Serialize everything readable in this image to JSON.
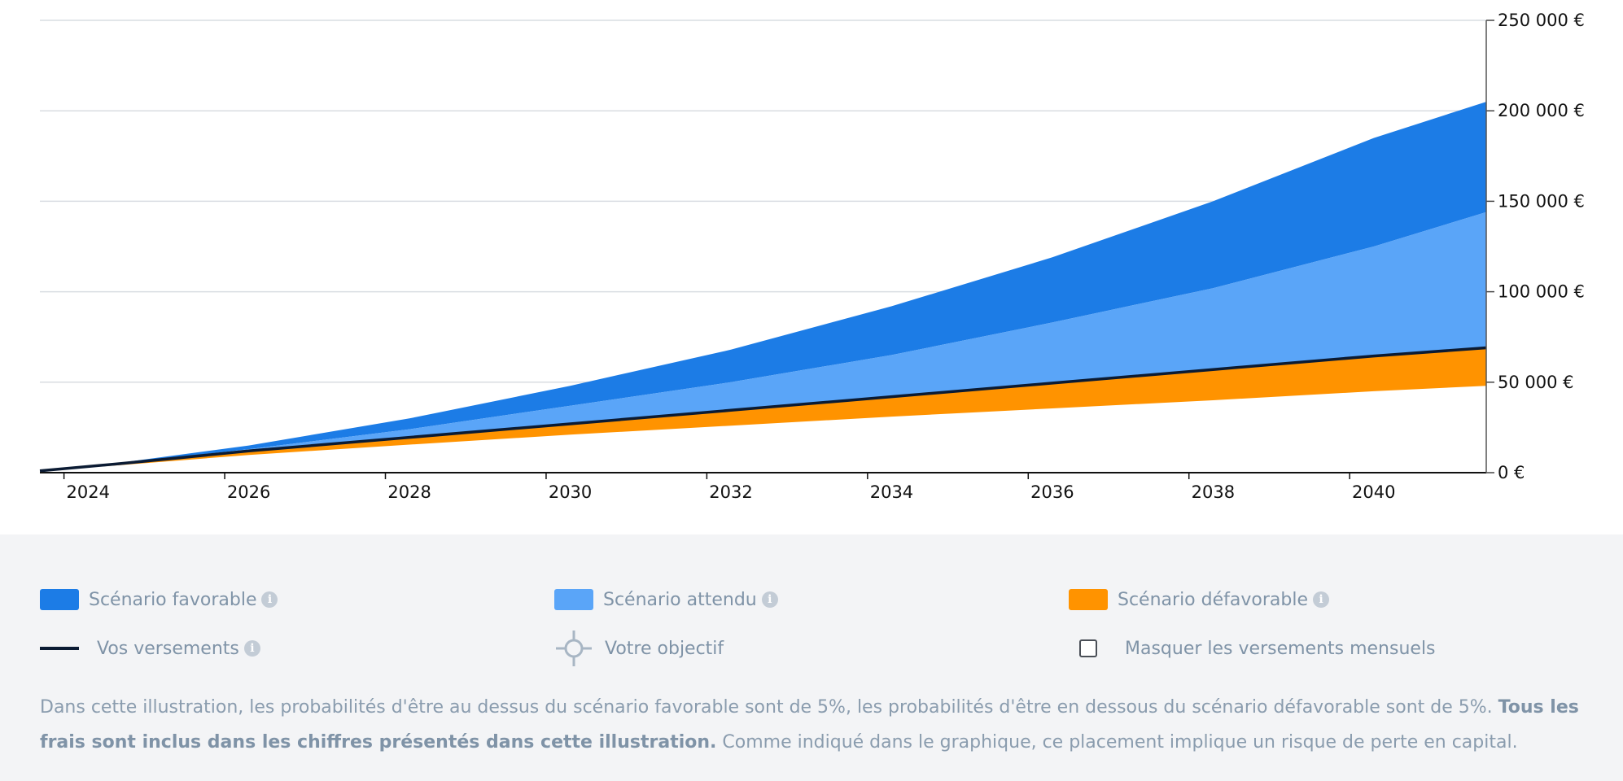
{
  "chart_data": {
    "type": "area",
    "x_ticks": [
      "2024",
      "2026",
      "2028",
      "2030",
      "2032",
      "2034",
      "2036",
      "2038",
      "2040"
    ],
    "y_ticks": [
      "0 €",
      "50 000 €",
      "100 000 €",
      "150 000 €",
      "200 000 €",
      "250 000 €"
    ],
    "xlim": [
      2023.4,
      2041.4
    ],
    "ylim": [
      0,
      250000
    ],
    "grid": true,
    "x": [
      2023.4,
      2024.4,
      2026,
      2028,
      2030,
      2032,
      2034,
      2036,
      2038,
      2040,
      2041.4
    ],
    "series": [
      {
        "name": "Scénario favorable",
        "color": "#1c7ce6",
        "values": [
          1000,
          5500,
          15000,
          30000,
          48000,
          68000,
          92000,
          119000,
          150000,
          185000,
          205000
        ]
      },
      {
        "name": "Scénario attendu",
        "color": "#5aa5f8",
        "values": [
          1000,
          5000,
          13000,
          24000,
          37000,
          50000,
          65000,
          83000,
          102000,
          125000,
          144000
        ]
      },
      {
        "name": "Scénario défavorable",
        "color": "#ff9300",
        "values": [
          1000,
          4200,
          9800,
          15500,
          21000,
          26000,
          31000,
          35500,
          40000,
          45000,
          48000
        ]
      },
      {
        "name": "Vos versements",
        "color": "#0b1b33",
        "values": [
          1000,
          5000,
          12000,
          19500,
          27000,
          34500,
          42000,
          49500,
          57000,
          64500,
          69000
        ]
      }
    ]
  },
  "legend": {
    "favorable": {
      "label": "Scénario favorable",
      "color": "#1c7ce6"
    },
    "attendu": {
      "label": "Scénario attendu",
      "color": "#5aa5f8"
    },
    "defavorable": {
      "label": "Scénario défavorable",
      "color": "#ff9300"
    },
    "versements": {
      "label": "Vos versements",
      "color": "#0b1b33"
    },
    "objectif": {
      "label": "Votre objectif"
    },
    "masquer": {
      "label": "Masquer les versements mensuels"
    },
    "info_glyph": "i"
  },
  "disclaimer": {
    "part1": "Dans cette illustration, les probabilités d'être au dessus du scénario favorable sont de 5%, les probabilités d'être en dessous du scénario défavorable sont de 5%. ",
    "bold": "Tous les frais sont inclus dans les chiffres présentés dans cette illustration.",
    "part2": " Comme indiqué dans le graphique, ce placement implique un risque de perte en capital."
  }
}
